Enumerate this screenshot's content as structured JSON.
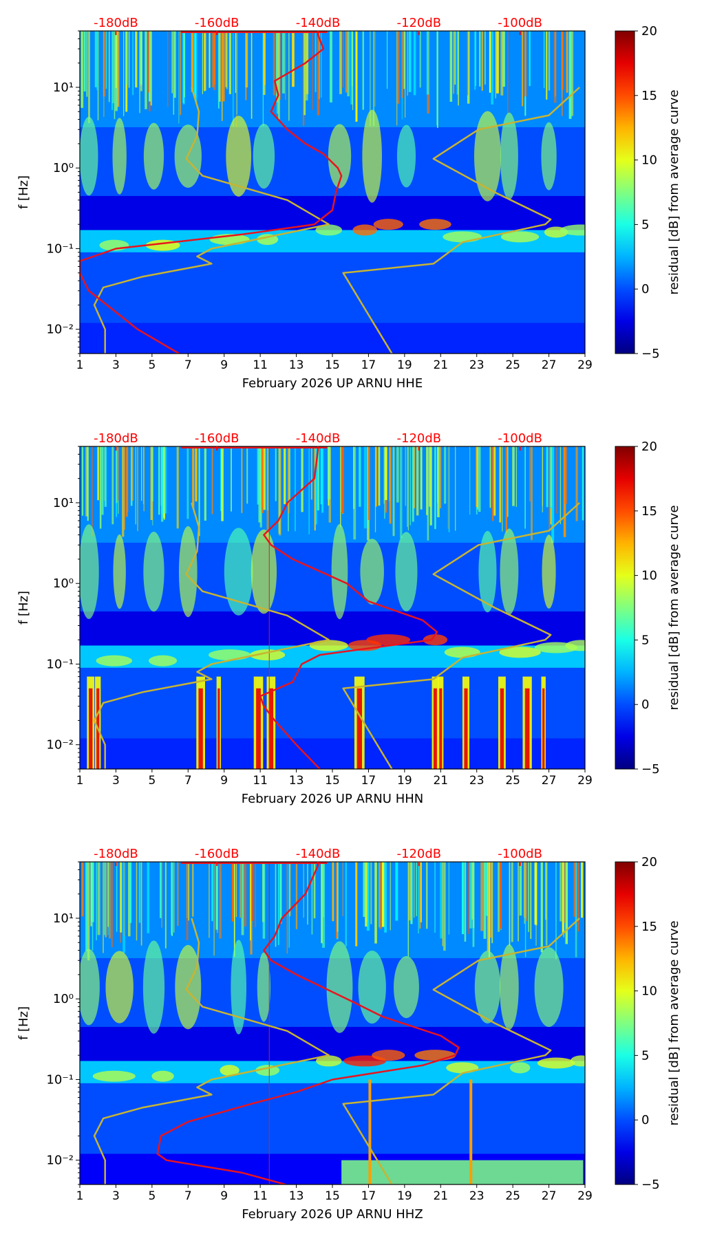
{
  "colors": {
    "background": "#00007f",
    "noise": "#0a3fd8",
    "db_labels": "#ff0000",
    "psd_curve": "#e8141e",
    "reference_curve": "#c8b432",
    "axis": "#000000"
  },
  "colorbar": {
    "label": "residual [dB] from average curve",
    "min": -5,
    "max": 20,
    "ticks": [
      -5,
      0,
      5,
      10,
      15,
      20
    ],
    "colormap": "jet"
  },
  "chart_data": [
    {
      "type": "heatmap",
      "channel": "HHE",
      "xlabel": "February 2026 UP ARNU  HHE",
      "ylabel": "f [Hz]",
      "x_range": [
        1,
        29
      ],
      "x_ticks": [
        1,
        3,
        5,
        7,
        9,
        11,
        13,
        15,
        17,
        19,
        21,
        23,
        25,
        27,
        29
      ],
      "y_scale": "log",
      "y_range": [
        0.005,
        50
      ],
      "y_tick_labels": [
        "10⁻²",
        "10⁻¹",
        "10⁰",
        "10¹"
      ],
      "y_tick_values": [
        0.01,
        0.1,
        1,
        10
      ],
      "top_axis_labels": [
        "-180dB",
        "-160dB",
        "-140dB",
        "-120dB",
        "-100dB"
      ],
      "top_axis_positions": [
        3,
        8.6,
        14.2,
        19.8,
        25.4
      ],
      "psd_curve": {
        "freqs": [
          0.005,
          0.01,
          0.02,
          0.03,
          0.05,
          0.07,
          0.1,
          0.15,
          0.2,
          0.3,
          0.5,
          0.8,
          1,
          1.5,
          2,
          3,
          5,
          8,
          12,
          20,
          30,
          45
        ],
        "x": [
          6.5,
          4.2,
          2.5,
          1.5,
          1,
          1,
          3,
          10,
          14,
          15,
          15.2,
          15.5,
          15.3,
          14.5,
          13.5,
          12.5,
          11.6,
          12,
          11.8,
          13.5,
          14.5,
          14.2
        ]
      },
      "reference_curve": {
        "left": {
          "freqs": [
            0.005,
            0.01,
            0.02,
            0.033,
            0.045,
            0.065,
            0.08,
            0.1,
            0.2,
            0.4,
            0.8,
            1.3,
            2.5,
            5,
            10
          ],
          "x": [
            2.4,
            2.4,
            1.8,
            2.3,
            4.5,
            8.3,
            7.5,
            8.3,
            14.8,
            12.5,
            7.8,
            6.9,
            7.5,
            7.6,
            7.2
          ]
        },
        "right": {
          "freqs": [
            0.005,
            0.05,
            0.065,
            0.12,
            0.2,
            0.23,
            0.5,
            1.3,
            3,
            4.5,
            10
          ],
          "x": [
            18.3,
            15.6,
            20.6,
            22.2,
            26.8,
            27.1,
            24,
            20.6,
            23.1,
            27,
            28.7
          ]
        }
      }
    },
    {
      "type": "heatmap",
      "channel": "HHN",
      "xlabel": "February 2026 UP ARNU  HHN",
      "ylabel": "f [Hz]",
      "x_range": [
        1,
        29
      ],
      "x_ticks": [
        1,
        3,
        5,
        7,
        9,
        11,
        13,
        15,
        17,
        19,
        21,
        23,
        25,
        27,
        29
      ],
      "y_scale": "log",
      "y_range": [
        0.005,
        50
      ],
      "y_tick_labels": [
        "10⁻²",
        "10⁻¹",
        "10⁰",
        "10¹"
      ],
      "y_tick_values": [
        0.01,
        0.1,
        1,
        10
      ],
      "top_axis_labels": [
        "-180dB",
        "-160dB",
        "-140dB",
        "-120dB",
        "-100dB"
      ],
      "top_axis_positions": [
        3,
        8.6,
        14.2,
        19.8,
        25.4
      ],
      "psd_curve": {
        "freqs": [
          0.005,
          0.01,
          0.02,
          0.03,
          0.04,
          0.06,
          0.1,
          0.13,
          0.2,
          0.25,
          0.35,
          0.6,
          1,
          2,
          3,
          4,
          6,
          10,
          20,
          45
        ],
        "x": [
          14.3,
          13,
          11.8,
          11.2,
          11,
          12.8,
          13.3,
          14.3,
          20.5,
          20.8,
          20,
          17,
          15.8,
          12.8,
          11.6,
          11.2,
          12,
          12.5,
          14,
          14.2
        ]
      },
      "reference_curve": {
        "left": {
          "freqs": [
            0.005,
            0.01,
            0.02,
            0.033,
            0.045,
            0.065,
            0.08,
            0.1,
            0.2,
            0.4,
            0.8,
            1.3,
            2.5,
            5,
            10
          ],
          "x": [
            2.4,
            2.4,
            1.8,
            2.3,
            4.5,
            8.3,
            7.5,
            8.3,
            14.8,
            12.5,
            7.8,
            6.9,
            7.5,
            7.6,
            7.2
          ]
        },
        "right": {
          "freqs": [
            0.005,
            0.05,
            0.065,
            0.12,
            0.2,
            0.23,
            0.5,
            1.3,
            3,
            4.5,
            10
          ],
          "x": [
            18.3,
            15.6,
            20.6,
            22.2,
            26.8,
            27.1,
            24,
            20.6,
            23.1,
            27,
            28.7
          ]
        }
      }
    },
    {
      "type": "heatmap",
      "channel": "HHZ",
      "xlabel": "February 2026 UP ARNU  HHZ",
      "ylabel": "f [Hz]",
      "x_range": [
        1,
        29
      ],
      "x_ticks": [
        1,
        3,
        5,
        7,
        9,
        11,
        13,
        15,
        17,
        19,
        21,
        23,
        25,
        27,
        29
      ],
      "y_scale": "log",
      "y_range": [
        0.005,
        50
      ],
      "y_tick_labels": [
        "10⁻²",
        "10⁻¹",
        "10⁰",
        "10¹"
      ],
      "y_tick_values": [
        0.01,
        0.1,
        1,
        10
      ],
      "top_axis_labels": [
        "-180dB",
        "-160dB",
        "-140dB",
        "-120dB",
        "-100dB"
      ],
      "top_axis_positions": [
        3,
        8.6,
        14.2,
        19.8,
        25.4
      ],
      "psd_curve": {
        "freqs": [
          0.005,
          0.007,
          0.01,
          0.012,
          0.02,
          0.03,
          0.05,
          0.07,
          0.1,
          0.15,
          0.2,
          0.25,
          0.35,
          0.6,
          1,
          2,
          3,
          4,
          6,
          10,
          20,
          45
        ],
        "x": [
          12.4,
          10,
          5.8,
          5.3,
          5.5,
          7,
          10.5,
          13,
          15,
          20,
          21.8,
          22,
          21,
          17.8,
          15.8,
          13,
          11.6,
          11.2,
          11.8,
          12.2,
          13.5,
          14.2
        ]
      },
      "reference_curve": {
        "left": {
          "freqs": [
            0.005,
            0.01,
            0.02,
            0.033,
            0.045,
            0.065,
            0.08,
            0.1,
            0.2,
            0.4,
            0.8,
            1.3,
            2.5,
            5,
            10
          ],
          "x": [
            2.4,
            2.4,
            1.8,
            2.3,
            4.5,
            8.3,
            7.5,
            8.3,
            14.8,
            12.5,
            7.8,
            6.9,
            7.5,
            7.6,
            7.2
          ]
        },
        "right": {
          "freqs": [
            0.005,
            0.05,
            0.065,
            0.12,
            0.2,
            0.23,
            0.5,
            1.3,
            3,
            4.5,
            10
          ],
          "x": [
            18.3,
            15.6,
            20.6,
            22.2,
            26.8,
            27.1,
            24,
            20.6,
            23.1,
            27,
            28.7
          ]
        }
      }
    }
  ]
}
